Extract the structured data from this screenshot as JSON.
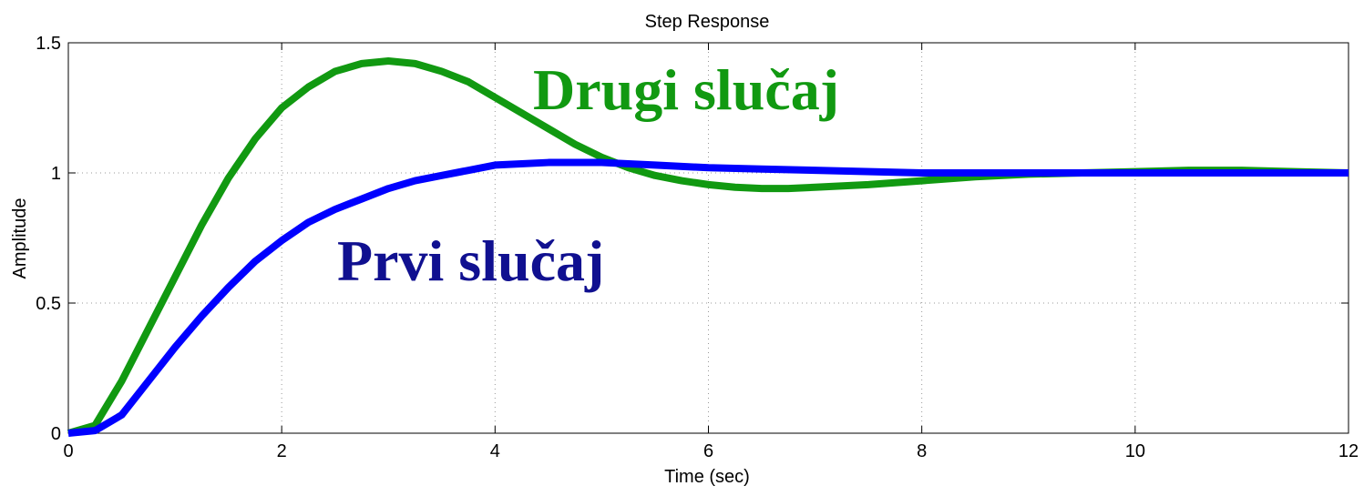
{
  "chart_data": {
    "type": "line",
    "title": "Step Response",
    "xlabel": "Time (sec)",
    "ylabel": "Amplitude",
    "xlim": [
      0,
      12
    ],
    "ylim": [
      0,
      1.5
    ],
    "xticks": [
      0,
      2,
      4,
      6,
      8,
      10,
      12
    ],
    "yticks": [
      0,
      0.5,
      1,
      1.5
    ],
    "grid": true,
    "series": [
      {
        "name": "Prvi slučaj",
        "color": "#0000ff",
        "x": [
          0,
          0.25,
          0.5,
          0.75,
          1,
          1.25,
          1.5,
          1.75,
          2,
          2.25,
          2.5,
          2.75,
          3,
          3.25,
          3.5,
          3.75,
          4,
          4.5,
          5,
          5.5,
          6,
          6.5,
          7,
          8,
          9,
          10,
          11,
          12
        ],
        "values": [
          0,
          0.01,
          0.07,
          0.2,
          0.33,
          0.45,
          0.56,
          0.66,
          0.74,
          0.81,
          0.86,
          0.9,
          0.94,
          0.97,
          0.99,
          1.01,
          1.03,
          1.04,
          1.04,
          1.03,
          1.02,
          1.015,
          1.01,
          1,
          1,
          1,
          1,
          1
        ]
      },
      {
        "name": "Drugi slučaj",
        "color": "#119911",
        "x": [
          0,
          0.25,
          0.5,
          0.75,
          1,
          1.25,
          1.5,
          1.75,
          2,
          2.25,
          2.5,
          2.75,
          3,
          3.25,
          3.5,
          3.75,
          4,
          4.25,
          4.5,
          4.75,
          5,
          5.25,
          5.5,
          5.75,
          6,
          6.25,
          6.5,
          6.75,
          7,
          7.5,
          8,
          8.5,
          9,
          9.5,
          10,
          10.5,
          11,
          11.5,
          12
        ],
        "values": [
          0,
          0.03,
          0.2,
          0.4,
          0.6,
          0.8,
          0.98,
          1.13,
          1.25,
          1.33,
          1.39,
          1.42,
          1.43,
          1.42,
          1.39,
          1.35,
          1.29,
          1.23,
          1.17,
          1.11,
          1.06,
          1.02,
          0.99,
          0.97,
          0.955,
          0.945,
          0.94,
          0.94,
          0.945,
          0.955,
          0.97,
          0.985,
          0.995,
          1,
          1.005,
          1.01,
          1.01,
          1.005,
          1
        ]
      }
    ],
    "annotations": [
      {
        "text": "Drugi slučaj",
        "color": "#119911"
      },
      {
        "text": "Prvi slučaj",
        "color": "#101090"
      }
    ]
  }
}
